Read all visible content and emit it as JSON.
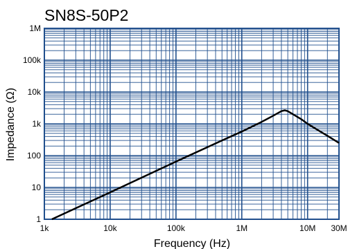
{
  "chart_data": {
    "type": "line",
    "title": "SN8S-50P2",
    "xlabel": "Frequency (Hz)",
    "ylabel": "Impedance (Ω)",
    "xscale": "log",
    "yscale": "log",
    "xlim": [
      1000,
      30000000
    ],
    "ylim": [
      1,
      1000000
    ],
    "grid": true,
    "x_tick_labels": [
      "1k",
      "10k",
      "100k",
      "1M",
      "10M",
      "30M"
    ],
    "y_tick_labels": [
      "1",
      "10",
      "100",
      "1k",
      "10k",
      "100k",
      "1M"
    ],
    "colors": {
      "grid": "#1f4e8c",
      "curve": "#000000"
    },
    "series": [
      {
        "x": [
          1300,
          10000,
          100000,
          500000,
          1000000,
          2000000,
          3000000,
          4000000,
          4500000,
          5000000,
          6000000,
          8000000,
          10000000,
          15000000,
          20000000,
          30000000
        ],
        "y": [
          0.95,
          7,
          65,
          300,
          570,
          1150,
          1800,
          2500,
          2650,
          2500,
          2000,
          1400,
          1000,
          600,
          420,
          250
        ]
      }
    ]
  }
}
